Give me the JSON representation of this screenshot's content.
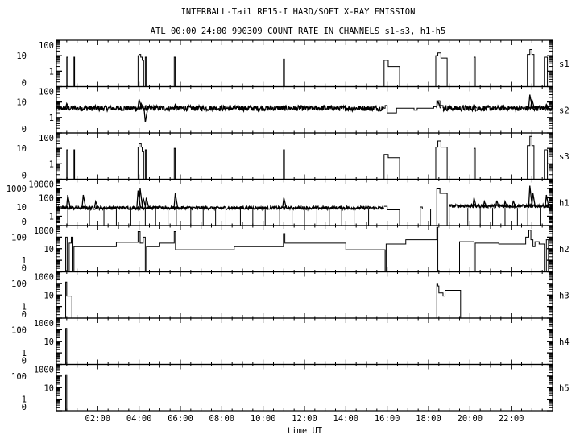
{
  "chart_data": {
    "type": "line",
    "title": "INTERBALL-Tail RF15-I HARD/SOFT X-RAY EMISSION",
    "subtitle": "ATL 00:00 24:00 990309  COUNT RATE IN CHANNELS s1-s3, h1-h5",
    "xlabel": "time UT",
    "xlim": [
      0,
      24
    ],
    "x_unit": "hours UT",
    "x_tick_labels": [
      "02:00",
      "04:00",
      "06:00",
      "08:00",
      "10:00",
      "12:00",
      "14:00",
      "16:00",
      "18:00",
      "20:00",
      "22:00"
    ],
    "y_scale": "log (0 shown at bottom)",
    "grid": false,
    "colors": {
      "line": "#000000",
      "background": "#ffffff"
    },
    "panels": [
      {
        "name": "s1",
        "y_ticks": [
          "100",
          "10",
          "1",
          "0"
        ],
        "ymax": 100,
        "steps": [
          [
            0,
            0
          ],
          [
            0.5,
            8
          ],
          [
            0.55,
            0
          ],
          [
            0.85,
            8
          ],
          [
            0.88,
            0
          ],
          [
            3.95,
            10
          ],
          [
            4.0,
            12
          ],
          [
            4.08,
            8
          ],
          [
            4.15,
            5
          ],
          [
            4.22,
            0
          ],
          [
            4.3,
            8
          ],
          [
            4.35,
            0
          ],
          [
            5.7,
            8
          ],
          [
            5.75,
            0
          ],
          [
            10.98,
            6
          ],
          [
            11.03,
            0
          ],
          [
            15.85,
            5
          ],
          [
            16.05,
            2
          ],
          [
            16.6,
            0
          ],
          [
            18.35,
            10
          ],
          [
            18.45,
            15
          ],
          [
            18.6,
            7
          ],
          [
            18.9,
            0
          ],
          [
            20.2,
            8
          ],
          [
            20.26,
            0
          ],
          [
            22.78,
            12
          ],
          [
            22.9,
            25
          ],
          [
            23.0,
            12
          ],
          [
            23.1,
            0
          ],
          [
            23.6,
            8
          ],
          [
            23.75,
            0
          ],
          [
            24,
            0
          ]
        ],
        "noise": []
      },
      {
        "name": "s2",
        "y_ticks": [
          "100",
          "10",
          "1",
          "0"
        ],
        "ymax": 100,
        "steps": [
          [
            15.85,
            4
          ],
          [
            15.9,
            6
          ],
          [
            16.0,
            2
          ],
          [
            16.45,
            4
          ],
          [
            17.3,
            3
          ],
          [
            17.45,
            4
          ],
          [
            17.6,
            4
          ],
          [
            18.25,
            5
          ],
          [
            18.4,
            12
          ],
          [
            18.55,
            6
          ],
          [
            18.7,
            4
          ]
        ],
        "noise": [
          {
            "from": 0,
            "to": 15.85,
            "level": 4
          },
          {
            "from": 18.7,
            "to": 24,
            "level": 4
          }
        ],
        "spikes": [
          [
            0.5,
            8
          ],
          [
            4.0,
            15
          ],
          [
            4.1,
            8
          ],
          [
            4.3,
            0.5
          ],
          [
            5.75,
            7
          ],
          [
            11.0,
            6
          ],
          [
            18.45,
            12
          ],
          [
            20.2,
            7
          ],
          [
            22.9,
            30
          ],
          [
            23.0,
            15
          ],
          [
            23.7,
            7
          ]
        ]
      },
      {
        "name": "s3",
        "y_ticks": [
          "100",
          "10",
          "1",
          "0"
        ],
        "ymax": 100,
        "steps": [
          [
            0,
            0
          ],
          [
            0.5,
            8
          ],
          [
            0.55,
            0
          ],
          [
            0.85,
            8
          ],
          [
            0.88,
            0
          ],
          [
            3.95,
            12
          ],
          [
            4.0,
            20
          ],
          [
            4.1,
            12
          ],
          [
            4.15,
            6
          ],
          [
            4.22,
            0
          ],
          [
            4.3,
            8
          ],
          [
            4.35,
            0
          ],
          [
            5.7,
            10
          ],
          [
            5.75,
            0
          ],
          [
            10.98,
            8
          ],
          [
            11.03,
            0
          ],
          [
            15.85,
            4
          ],
          [
            16.05,
            2.5
          ],
          [
            16.6,
            0
          ],
          [
            18.35,
            12
          ],
          [
            18.45,
            30
          ],
          [
            18.6,
            12
          ],
          [
            18.9,
            0
          ],
          [
            20.2,
            10
          ],
          [
            20.26,
            0
          ],
          [
            22.78,
            15
          ],
          [
            22.9,
            60
          ],
          [
            23.0,
            15
          ],
          [
            23.1,
            0
          ],
          [
            23.6,
            8
          ],
          [
            23.75,
            0
          ],
          [
            24,
            0
          ]
        ],
        "noise": []
      },
      {
        "name": "h1",
        "y_ticks": [
          "10000",
          "1000",
          "100",
          "10",
          "1",
          "0"
        ],
        "ymax": 10000,
        "steps": [
          [
            15.85,
            12
          ],
          [
            16.0,
            5
          ],
          [
            16.6,
            0
          ],
          [
            17.6,
            10
          ],
          [
            17.7,
            6
          ],
          [
            18.1,
            0
          ],
          [
            18.4,
            900
          ],
          [
            18.55,
            300
          ],
          [
            18.9,
            0
          ],
          [
            19.0,
            12
          ]
        ],
        "noise": [
          {
            "from": 0,
            "to": 15.85,
            "level": 8
          },
          {
            "from": 19.0,
            "to": 24,
            "level": 13
          }
        ],
        "spikes": [
          [
            0.55,
            200
          ],
          [
            1.3,
            200
          ],
          [
            1.9,
            40
          ],
          [
            3.95,
            600
          ],
          [
            4.05,
            1000
          ],
          [
            4.2,
            100
          ],
          [
            4.35,
            100
          ],
          [
            5.75,
            300
          ],
          [
            11.0,
            100
          ],
          [
            20.2,
            100
          ],
          [
            20.7,
            40
          ],
          [
            21.3,
            50
          ],
          [
            21.7,
            40
          ],
          [
            22.1,
            50
          ],
          [
            22.9,
            2000
          ],
          [
            23.05,
            300
          ],
          [
            23.7,
            200
          ]
        ],
        "dropouts": [
          0.55,
          1.6,
          2.3,
          2.9,
          3.6,
          4.3,
          4.8,
          5.4,
          5.8,
          6.5,
          7.1,
          7.7,
          8.2,
          8.9,
          9.5,
          10.1,
          10.8,
          11.4,
          12.0,
          12.6,
          13.2,
          13.8,
          14.4,
          15.1,
          19.9,
          20.5,
          21.1,
          21.7,
          22.3,
          22.8,
          23.4
        ]
      },
      {
        "name": "h2",
        "y_ticks": [
          "1000",
          "100",
          "10",
          "1",
          "0"
        ],
        "ymax": 1000,
        "steps": [
          [
            0,
            0
          ],
          [
            0.45,
            100
          ],
          [
            0.52,
            0
          ],
          [
            0.62,
            30
          ],
          [
            0.72,
            100
          ],
          [
            0.8,
            0
          ],
          [
            0.85,
            15
          ],
          [
            2.9,
            35
          ],
          [
            3.95,
            300
          ],
          [
            4.05,
            30
          ],
          [
            4.2,
            100
          ],
          [
            4.3,
            0
          ],
          [
            4.36,
            15
          ],
          [
            5.0,
            30
          ],
          [
            5.7,
            300
          ],
          [
            5.76,
            8
          ],
          [
            8.6,
            15
          ],
          [
            10.98,
            200
          ],
          [
            11.05,
            30
          ],
          [
            14.0,
            8
          ],
          [
            15.9,
            0
          ],
          [
            15.95,
            25
          ],
          [
            16.9,
            60
          ],
          [
            18.4,
            700
          ],
          [
            18.45,
            0
          ],
          [
            19.5,
            40
          ],
          [
            20.2,
            0
          ],
          [
            20.26,
            30
          ],
          [
            21.4,
            25
          ],
          [
            22.7,
            100
          ],
          [
            22.85,
            400
          ],
          [
            22.95,
            60
          ],
          [
            23.05,
            15
          ],
          [
            23.15,
            40
          ],
          [
            23.35,
            25
          ],
          [
            23.6,
            0
          ],
          [
            23.7,
            60
          ],
          [
            23.8,
            0
          ],
          [
            24,
            0
          ]
        ],
        "noise": []
      },
      {
        "name": "h3",
        "y_ticks": [
          "1000",
          "100",
          "10",
          "1",
          "0"
        ],
        "ymax": 1000,
        "steps": [
          [
            0,
            0
          ],
          [
            0.45,
            130
          ],
          [
            0.5,
            8
          ],
          [
            0.75,
            0
          ],
          [
            18.4,
            100
          ],
          [
            18.45,
            60
          ],
          [
            18.5,
            15
          ],
          [
            18.7,
            8
          ],
          [
            18.8,
            25
          ],
          [
            19.55,
            0
          ],
          [
            24,
            0
          ]
        ],
        "noise": []
      },
      {
        "name": "h4",
        "y_ticks": [
          "1000",
          "100",
          "10",
          "1",
          "0"
        ],
        "ymax": 1000,
        "steps": [
          [
            0,
            0
          ],
          [
            0.45,
            130
          ],
          [
            0.5,
            0
          ],
          [
            24,
            0
          ]
        ],
        "noise": []
      },
      {
        "name": "h5",
        "y_ticks": [
          "1000",
          "100",
          "10",
          "1",
          "0"
        ],
        "ymax": 1000,
        "steps": [
          [
            0,
            0
          ],
          [
            0.45,
            130
          ],
          [
            0.5,
            0
          ],
          [
            24,
            0
          ]
        ],
        "noise": []
      }
    ]
  }
}
